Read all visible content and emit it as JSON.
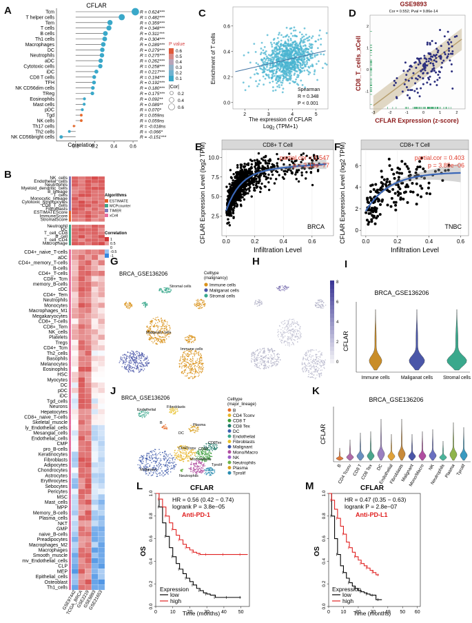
{
  "panel_letters": [
    "A",
    "B",
    "C",
    "D",
    "E",
    "F",
    "G",
    "H",
    "I",
    "J",
    "K",
    "L",
    "M"
  ],
  "chart_data": [
    {
      "id": "A",
      "type": "lollipop",
      "title": "CFLAR",
      "xlabel": "Correlation",
      "xlim": [
        -0.2,
        0.65
      ],
      "xticks": [
        "0.0",
        "0.2",
        "0.4",
        "0.6"
      ],
      "xtick_values": [
        0.0,
        0.2,
        0.4,
        0.6
      ],
      "categories": [
        "Tcm",
        "T helper cells",
        "Tem",
        "T cells",
        "B cells",
        "Th1 cells",
        "Macrophages",
        "DC",
        "Neutrophils",
        "aDC",
        "Cytotoxic cells",
        "iDC",
        "CD8 T cells",
        "TFH",
        "NK CD56dim cells",
        "TReg",
        "Eosinophils",
        "Mast cells",
        "pDC",
        "Tgd",
        "NK cells",
        "Th17 cells",
        "Th2 cells",
        "NK CD56bright cells"
      ],
      "values": [
        0.624,
        0.482,
        0.359,
        0.348,
        0.311,
        0.304,
        0.289,
        0.279,
        0.275,
        0.262,
        0.258,
        0.217,
        0.194,
        0.192,
        0.18,
        0.175,
        0.092,
        0.089,
        0.07,
        0.059,
        0.059,
        -0.018,
        -0.066,
        -0.151
      ],
      "labels": [
        "R = 0.624***",
        "R = 0.482***",
        "R = 0.359***",
        "R = 0.348***",
        "R = 0.311***",
        "R = 0.304***",
        "R = 0.289***",
        "R = 0.279***",
        "R = 0.275***",
        "R = 0.262***",
        "R = 0.258***",
        "R = 0.217***",
        "R = 0.194***",
        "R = 0.192***",
        "R = 0.180***",
        "R = 0.175***",
        "R = 0.092**",
        "R = 0.089**",
        "R = 0.070*",
        "R = 0.059ns",
        "R = 0.059ns",
        "R = -0.018ns",
        "R = -0.066*",
        "R = -0.151***"
      ],
      "legend_pvalue_title": "P value",
      "legend_pvalue": [
        "0.6",
        "0.5",
        "0.4",
        "0.3",
        "0.2",
        "0.1"
      ],
      "legend_cor_title": "|Cor|",
      "legend_cor": [
        "0.2",
        "0.4",
        "0.6"
      ],
      "colors": {
        "sig": "#3aa8c9",
        "low": "#e66b2e"
      }
    },
    {
      "id": "B",
      "type": "heatmap",
      "columns": [
        "GSE97442",
        "TCGA_BRCA",
        "GSE2219",
        "GSE9893",
        "GSE21653"
      ],
      "group1_rows": [
        "NK_cells",
        "Endothelial_cells",
        "Neutrophils",
        "Myeloid_dendritic_cells",
        "B_lineage",
        "T_cells",
        "Monocytic_lineage",
        "Cytotoxic_lymphocytes",
        "CD8_T_cells",
        "Fibroblasts"
      ],
      "group2_rows": [
        "ESTIMATEScore",
        "ImmuneScore",
        "StromalScore"
      ],
      "group3_rows": [
        "Neutrophil",
        "DC",
        "T_cell_CD8",
        "B_cell",
        "T_cell_CD4",
        "Macrophage"
      ],
      "group4_rows": [
        "CD4+_naive_T-cells",
        "aDC",
        "CD4+_memory_T-cells",
        "B-cells",
        "CD4+_T-cells",
        "CD8+_Tcm",
        "memory_B-cells",
        "cDC",
        "CD4+_Tem",
        "Neutrophils",
        "Monocytes",
        "Macrophages_M1",
        "Megakaryocytes",
        "CD8+_T-cells",
        "CD8+_Tem",
        "NK_cells",
        "Platelets",
        "Tregs",
        "CD4+_Tcm",
        "Th2_cells",
        "Basophils",
        "Melanocytes",
        "Eosinophils",
        "HSC",
        "Myocytes",
        "DC",
        "pDC",
        "iDC",
        "Tgd_cells",
        "Neurons",
        "Hepatocytes",
        "CD8+_naive_T-cells",
        "Skeletal_muscle",
        "ly_Endothelial_cells",
        "Mesangial_cells",
        "Endothelial_cells",
        "CMP",
        "pro_B-cells",
        "Keratinocytes",
        "Fibroblasts",
        "Adipocytes",
        "Chondrocytes",
        "Astrocytes",
        "Erythrocytes",
        "Sebocytes",
        "Pericytes",
        "MSC",
        "Mast_cells",
        "MPP",
        "Memory_B-cells",
        "Plasma_cells",
        "NKT",
        "GMP",
        "naive_B-cells",
        "Preadipocytes",
        "Macrophages_M2",
        "Macrophages",
        "Smooth_muscle",
        "mv_Endothelial_cells",
        "CLP",
        "MEP",
        "Epithelial_cells",
        "Osteoblast",
        "Th1_cells"
      ],
      "legend_algorithms_title": "Algorithms",
      "legend_algorithms": [
        "ESTIMATE",
        "MCPcounter",
        "TIMER",
        "xCell"
      ],
      "legend_algorithm_colors": [
        "#e0622a",
        "#41a58a",
        "#7f7bb8",
        "#e76c9e"
      ],
      "legend_corr_title": "Correlation",
      "legend_corr_ticks": [
        "1",
        "0.5",
        "0",
        "-0.5",
        "-1"
      ]
    },
    {
      "id": "C",
      "type": "scatter",
      "xlabel": "The expression of CFLAR",
      "xlabel2": "Log",
      "xlabel2_sub": "2",
      "xlabel2_tail": " (TPM+1)",
      "ylabel": "Enrichment of T cells",
      "xticks": [
        "2",
        "3",
        "4",
        "5"
      ],
      "yticks": [
        "0.0",
        "0.2",
        "0.4",
        "0.6"
      ],
      "xlim": [
        1.5,
        5.5
      ],
      "ylim": [
        -0.05,
        0.75
      ],
      "fit": {
        "slope": 0.043,
        "intercept": 0.173
      },
      "stats": [
        "Spearman",
        "R = 0.348",
        "P < 0.001"
      ],
      "color": "#4ab4d0"
    },
    {
      "id": "D",
      "type": "scatter",
      "title": "GSE9893",
      "subtitle": "Cor = 0.552; Pval = 9.86e-14",
      "xlabel": "CFLAR Expression (z-score)",
      "ylabel": "CD8_T_cells_xCell",
      "xticks": [
        "-3",
        "-2",
        "-1",
        "0",
        "1",
        "2"
      ],
      "yticks": [
        "-1",
        "0",
        "1",
        "2"
      ],
      "xlim": [
        -3.2,
        2.5
      ],
      "ylim": [
        -1.8,
        2.5
      ],
      "fit": {
        "slope": 0.55,
        "intercept": 0.0
      },
      "color": "#2c2f7e"
    },
    {
      "id": "E",
      "type": "scatter",
      "strip": "CD8+ T Cell",
      "tag": "BRCA",
      "annotation": [
        "partial.cor = 0.547",
        "p = 3.13e−77"
      ],
      "xlabel": "Infiltration Level",
      "ylabel": "CFLAR Expression Level (log2 TPM)",
      "xticks": [
        "0.0",
        "0.2",
        "0.4",
        "0.6"
      ],
      "yticks": [
        "2.5",
        "5.0",
        "7.5",
        "10.0"
      ],
      "xlim": [
        -0.03,
        0.75
      ],
      "ylim": [
        0,
        11
      ],
      "color": "#000000",
      "fit_color": "#3a67b8"
    },
    {
      "id": "F",
      "type": "scatter",
      "strip": "CD8+ T Cell",
      "tag": "TNBC",
      "annotation": [
        "partial.cor = 0.403",
        "p = 3.85e−06"
      ],
      "xlabel": "Infiltration Level",
      "ylabel": "CFLAR Expression Level (log2 TPM)",
      "xticks": [
        "0.0",
        "0.2",
        "0.4",
        "0.6"
      ],
      "yticks": [
        "0",
        "2",
        "4",
        "6"
      ],
      "xlim": [
        -0.03,
        0.65
      ],
      "ylim": [
        -0.5,
        7.5
      ],
      "color": "#000000",
      "fit_color": "#3a67b8"
    },
    {
      "id": "G",
      "type": "umap",
      "title": "BRCA_GSE136206",
      "cluster_labels": [
        "Stromal cells",
        "Malignant cells",
        "Immune cells"
      ],
      "legend_title": "Celltype",
      "legend_subtitle": "(malignancy)",
      "legend": [
        "Immune cells",
        "Maliganat cells",
        "Stromal cells"
      ],
      "legend_colors": [
        "#d9921a",
        "#4a56a8",
        "#3aa88c"
      ]
    },
    {
      "id": "H",
      "type": "umap",
      "colorbar_ticks": [
        "8",
        "6",
        "4",
        "2",
        "0"
      ]
    },
    {
      "id": "I",
      "type": "violin",
      "title": "BRCA_GSE136206",
      "ylabel": "CFLAR",
      "categories": [
        "Immune cells",
        "Maliganat cells",
        "Stromal cells"
      ],
      "colors": [
        "#c98d28",
        "#4a56a8",
        "#3aa88c"
      ]
    },
    {
      "id": "J",
      "type": "umap",
      "title": "BRCA_GSE136206",
      "cluster_labels": [
        "Endothelial",
        "Fibroblasts",
        "Plasma",
        "B",
        "DC",
        "CD4Tconv",
        "CD8T",
        "CD8Tex",
        "Malignant",
        "Mono/Macro",
        "Tprolif",
        "Neutrophils"
      ],
      "legend_title": "Celltype",
      "legend_subtitle": "(major_lineage)",
      "legend": [
        "B",
        "CD4 Tconv",
        "CD8 T",
        "CD8 Tex",
        "DC",
        "Endothelial",
        "Fibroblasts",
        "Malignant",
        "Mono/Macro",
        "NK",
        "Neutrophils",
        "Plasma",
        "Tprolif"
      ],
      "legend_colors": [
        "#e76f2a",
        "#e7b52a",
        "#3a9c3a",
        "#1e7a6a",
        "#3c60b0",
        "#3aa88c",
        "#e7c12a",
        "#3a56a8",
        "#b04da0",
        "#9b5fc6",
        "#6bb24a",
        "#d9a020",
        "#2a8cb0"
      ]
    },
    {
      "id": "K",
      "type": "violin",
      "title": "BRCA_GSE136206",
      "ylabel": "CFLAR",
      "categories": [
        "B",
        "CD4 Tconv",
        "CD8 T",
        "CD8 Tex",
        "DC",
        "Endothelial",
        "Fibroblasts",
        "Malignant",
        "Mono/Macro",
        "NK",
        "Neutrophils",
        "Plasma",
        "Tprolif"
      ],
      "colors": [
        "#e07a3a",
        "#b06aa8",
        "#6a8fc0",
        "#4aa68c",
        "#9a7fc0",
        "#e0a23a",
        "#c88a3a",
        "#4a56a8",
        "#b04da0",
        "#6a6fc0",
        "#4ab49a",
        "#8fb44a",
        "#3a9ac0"
      ]
    },
    {
      "id": "L",
      "type": "km",
      "title": "CFLAR",
      "hr": "HR = 0.56 (0.42 − 0.74)",
      "logrank": "logrank P = 3.8e−05",
      "treatment": "Anti-PD-1",
      "ylabel": "OS",
      "xlabel": "Time (months)",
      "xticks": [
        "0",
        "10",
        "20",
        "30",
        "40",
        "50"
      ],
      "yticks": [
        "0.0",
        "0.2",
        "0.4",
        "0.6",
        "0.8",
        "1.0"
      ],
      "xlim": [
        0,
        55
      ],
      "ylim": [
        0,
        1
      ],
      "legend_title": "Expression",
      "legend": [
        "low",
        "high"
      ],
      "series": [
        {
          "name": "low",
          "color": "#000000",
          "times": [
            0,
            2,
            4,
            6,
            8,
            10,
            12,
            14,
            16,
            18,
            20,
            22,
            24,
            26,
            28,
            30,
            32,
            35,
            38,
            42,
            45,
            50
          ],
          "surv": [
            1,
            0.88,
            0.74,
            0.62,
            0.52,
            0.44,
            0.38,
            0.33,
            0.29,
            0.25,
            0.22,
            0.19,
            0.16,
            0.14,
            0.12,
            0.11,
            0.1,
            0.08,
            0.08,
            0.08,
            0.08,
            0.08
          ]
        },
        {
          "name": "high",
          "color": "#e02020",
          "times": [
            0,
            2,
            4,
            6,
            8,
            10,
            12,
            14,
            16,
            18,
            20,
            22,
            24,
            26,
            28,
            30,
            35,
            40,
            45,
            50,
            54
          ],
          "surv": [
            1,
            0.95,
            0.88,
            0.8,
            0.74,
            0.68,
            0.63,
            0.59,
            0.55,
            0.52,
            0.5,
            0.48,
            0.47,
            0.46,
            0.46,
            0.46,
            0.46,
            0.46,
            0.46,
            0.46,
            0.46
          ]
        }
      ]
    },
    {
      "id": "M",
      "type": "km",
      "title": "CFLAR",
      "hr": "HR = 0.47 (0.35 − 0.63)",
      "logrank": "logrank P = 2.8e−07",
      "treatment": "Anti-PD-L1",
      "ylabel": "OS",
      "xlabel": "Time (months)",
      "xticks": [
        "0",
        "10",
        "20",
        "30",
        "40",
        "50",
        "60"
      ],
      "yticks": [
        "0.0",
        "0.2",
        "0.4",
        "0.6",
        "0.8",
        "1.0"
      ],
      "xlim": [
        0,
        62
      ],
      "ylim": [
        0,
        1
      ],
      "legend_title": "Expression",
      "legend": [
        "low",
        "high"
      ],
      "series": [
        {
          "name": "low",
          "color": "#000000",
          "times": [
            0,
            2,
            4,
            6,
            8,
            10,
            12,
            14,
            16,
            18,
            20,
            22,
            24,
            26,
            28,
            30,
            32,
            34,
            36
          ],
          "surv": [
            1,
            0.8,
            0.6,
            0.46,
            0.36,
            0.3,
            0.25,
            0.21,
            0.18,
            0.16,
            0.14,
            0.13,
            0.12,
            0.11,
            0.1,
            0.1,
            0.06,
            0.06,
            0.06
          ]
        },
        {
          "name": "high",
          "color": "#e02020",
          "times": [
            0,
            2,
            4,
            6,
            8,
            10,
            12,
            14,
            16,
            18,
            20,
            22,
            24,
            26,
            28,
            30,
            32,
            34
          ],
          "surv": [
            1,
            0.94,
            0.86,
            0.78,
            0.71,
            0.64,
            0.57,
            0.52,
            0.48,
            0.44,
            0.41,
            0.38,
            0.36,
            0.34,
            0.32,
            0.3,
            0.28,
            0.28
          ]
        }
      ]
    }
  ]
}
